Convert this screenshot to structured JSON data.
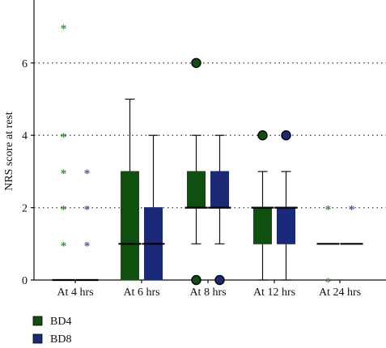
{
  "chart_data": {
    "type": "box",
    "ylabel": "NRS score at rest",
    "ylim": [
      0,
      7.5
    ],
    "yticks": [
      0,
      2,
      4,
      6
    ],
    "grid": "dotted horizontal at 2, 4, 6",
    "legend_placement": "bottom-left",
    "categories": [
      "At 4 hrs",
      "At 6 hrs",
      "At 8 hrs",
      "At 12 hrs",
      "At 24 hrs"
    ],
    "series": [
      {
        "name": "BD4",
        "color": "#0f4f0f",
        "boxes": [
          {
            "min": 0,
            "q1": 0,
            "median": 0,
            "q3": 0,
            "max": 0,
            "outliers": [],
            "extremes": [
              1,
              2,
              3,
              4,
              7
            ]
          },
          {
            "min": 0,
            "q1": 0,
            "median": 1,
            "q3": 3,
            "max": 5,
            "outliers": [],
            "extremes": []
          },
          {
            "min": 1,
            "q1": 2,
            "median": 2,
            "q3": 3,
            "max": 4,
            "outliers": [
              0,
              6
            ],
            "extremes": []
          },
          {
            "min": 0,
            "q1": 1,
            "median": 2,
            "q3": 2,
            "max": 3,
            "outliers": [
              4
            ],
            "extremes": []
          },
          {
            "min": 1,
            "q1": 1,
            "median": 1,
            "q3": 1,
            "max": 1,
            "outliers": [],
            "extremes": [
              0,
              2
            ]
          }
        ]
      },
      {
        "name": "BD8",
        "color": "#1a2a78",
        "boxes": [
          {
            "min": 0,
            "q1": 0,
            "median": 0,
            "q3": 0,
            "max": 0,
            "outliers": [],
            "extremes": [
              1,
              2,
              3
            ]
          },
          {
            "min": 0,
            "q1": 0,
            "median": 1,
            "q3": 2,
            "max": 4,
            "outliers": [],
            "extremes": []
          },
          {
            "min": 1,
            "q1": 2,
            "median": 2,
            "q3": 3,
            "max": 4,
            "outliers": [
              0
            ],
            "extremes": []
          },
          {
            "min": 0,
            "q1": 1,
            "median": 2,
            "q3": 2,
            "max": 3,
            "outliers": [
              4
            ],
            "extremes": []
          },
          {
            "min": 1,
            "q1": 1,
            "median": 1,
            "q3": 1,
            "max": 1,
            "outliers": [],
            "extremes": [
              2
            ]
          }
        ]
      }
    ]
  }
}
